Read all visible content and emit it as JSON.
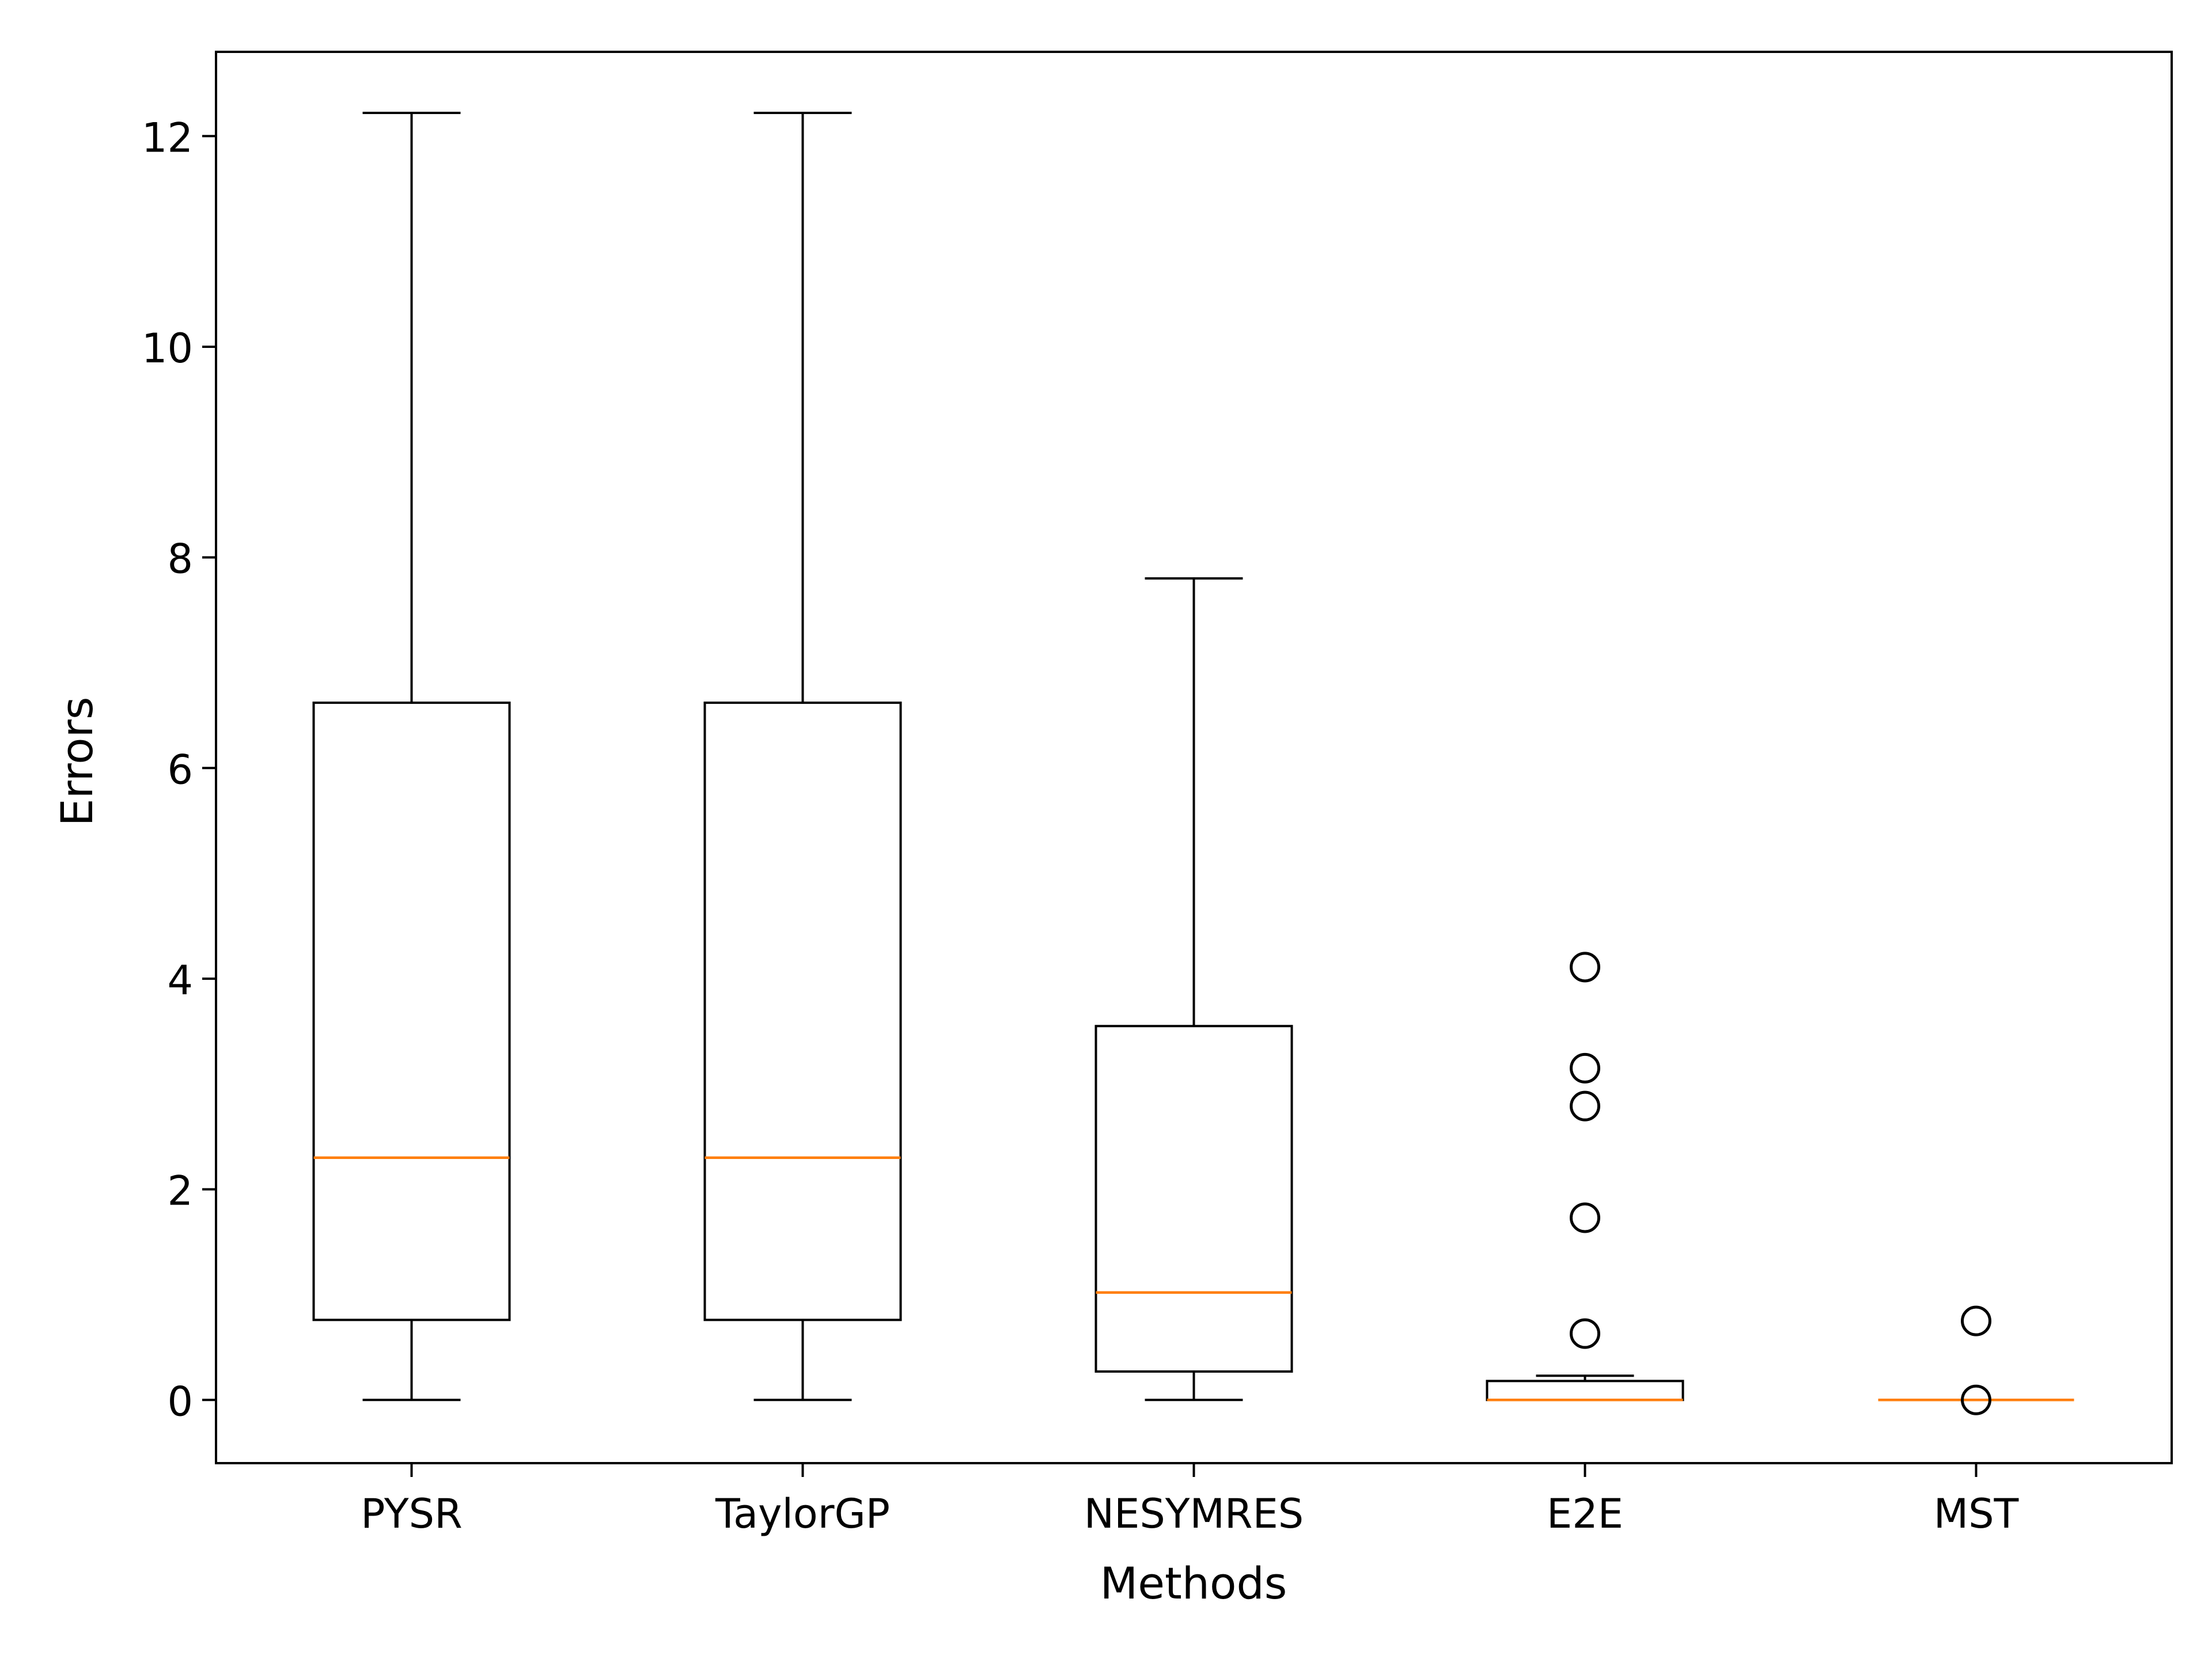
{
  "chart_data": {
    "type": "boxplot",
    "title": "",
    "xlabel": "Methods",
    "ylabel": "Errors",
    "ylim": [
      -0.6,
      12.8
    ],
    "yticks": [
      0,
      2,
      4,
      6,
      8,
      10,
      12
    ],
    "grid": false,
    "legend": "none",
    "categories": [
      "PYSR",
      "TaylorGP",
      "NESYMRES",
      "E2E",
      "MST"
    ],
    "boxes": [
      {
        "name": "PYSR",
        "whisker_low": 0,
        "q1": 0.76,
        "median": 2.3,
        "q3": 6.62,
        "whisker_high": 12.22,
        "outliers": []
      },
      {
        "name": "TaylorGP",
        "whisker_low": 0,
        "q1": 0.76,
        "median": 2.3,
        "q3": 6.62,
        "whisker_high": 12.22,
        "outliers": []
      },
      {
        "name": "NESYMRES",
        "whisker_low": 0,
        "q1": 0.27,
        "median": 1.02,
        "q3": 3.55,
        "whisker_high": 7.8,
        "outliers": []
      },
      {
        "name": "E2E",
        "whisker_low": 0,
        "q1": 0,
        "median": 0,
        "q3": 0.18,
        "whisker_high": 0.23,
        "outliers": [
          4.11,
          3.15,
          2.79,
          1.73,
          0.63
        ]
      },
      {
        "name": "MST",
        "whisker_low": 0,
        "q1": 0,
        "median": 0,
        "q3": 0,
        "whisker_high": 0,
        "outliers": [
          0.75,
          0
        ]
      }
    ],
    "colors": {
      "box": "#000000",
      "median": "#ff7f0e",
      "flier": "#000000"
    }
  }
}
